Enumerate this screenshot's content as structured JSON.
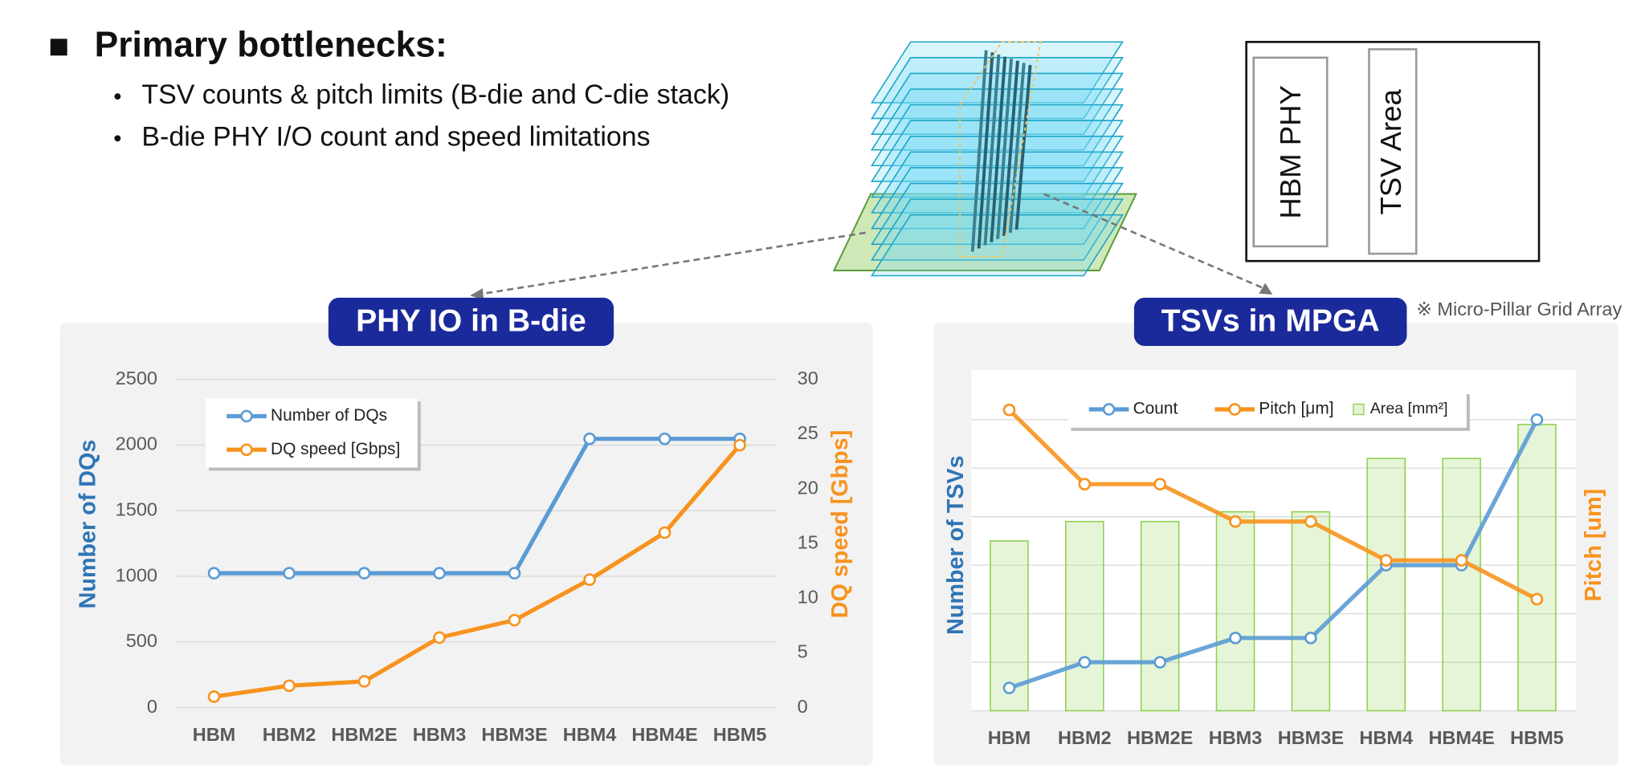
{
  "header": {
    "title": "Primary bottlenecks:",
    "bullets": [
      "TSV counts & pitch limits (B-die and C-die stack)",
      "B-die PHY I/O count and speed limitations"
    ]
  },
  "diagram": {
    "labels": [
      "HBM PHY",
      "TSV Area"
    ],
    "note": "※ Micro-Pillar Grid Array"
  },
  "chart_data": [
    {
      "type": "line",
      "title": "PHY IO in B-die",
      "categories": [
        "HBM",
        "HBM2",
        "HBM2E",
        "HBM3",
        "HBM3E",
        "HBM4",
        "HBM4E",
        "HBM5"
      ],
      "y_label": "Number of DQs",
      "y2_label": "DQ speed [Gbps]",
      "ylim": [
        0,
        2500
      ],
      "yticks": [
        0,
        500,
        1000,
        1500,
        2000,
        2500
      ],
      "y2lim": [
        0,
        30
      ],
      "y2ticks": [
        0,
        5,
        10,
        15,
        20,
        25,
        30
      ],
      "grid": true,
      "show_tick_labels": true,
      "legend": "upper left",
      "series": [
        {
          "name": "Number of DQs",
          "color": "#5b9bd5",
          "values": [
            1024,
            1024,
            1024,
            1024,
            1024,
            2048,
            2048,
            2048
          ]
        },
        {
          "name": "DQ speed [Gbps]",
          "color": "#f7931e",
          "axis": "y2",
          "values": [
            1,
            2,
            2.4,
            6.4,
            8,
            11.7,
            16,
            24
          ]
        }
      ]
    },
    {
      "type": "combo",
      "title": "TSVs in MPGA",
      "categories": [
        "HBM",
        "HBM2",
        "HBM2E",
        "HBM3",
        "HBM3E",
        "HBM4",
        "HBM4E",
        "HBM5"
      ],
      "y_label": "Number of TSVs",
      "y2_label": "Pitch [um]",
      "ylim": [
        0,
        7
      ],
      "yticks": [
        0,
        1,
        2,
        3,
        4,
        5,
        6
      ],
      "grid": true,
      "show_tick_labels": false,
      "legend": "upper center",
      "series": [
        {
          "name": "Count",
          "type": "line",
          "color": "#5b9bd5",
          "values": [
            0.47,
            1,
            1,
            1.5,
            1.5,
            3,
            3,
            6
          ]
        },
        {
          "name": "Pitch [μm]",
          "type": "line",
          "color": "#f7931e",
          "values": [
            6.2,
            4.67,
            4.67,
            3.9,
            3.9,
            3.1,
            3.1,
            2.3
          ]
        },
        {
          "name": "Area [mm²]",
          "type": "bar",
          "color": "#8fd14f",
          "values": [
            3.5,
            3.9,
            3.9,
            4.1,
            4.1,
            5.2,
            5.2,
            5.9
          ]
        }
      ]
    }
  ]
}
